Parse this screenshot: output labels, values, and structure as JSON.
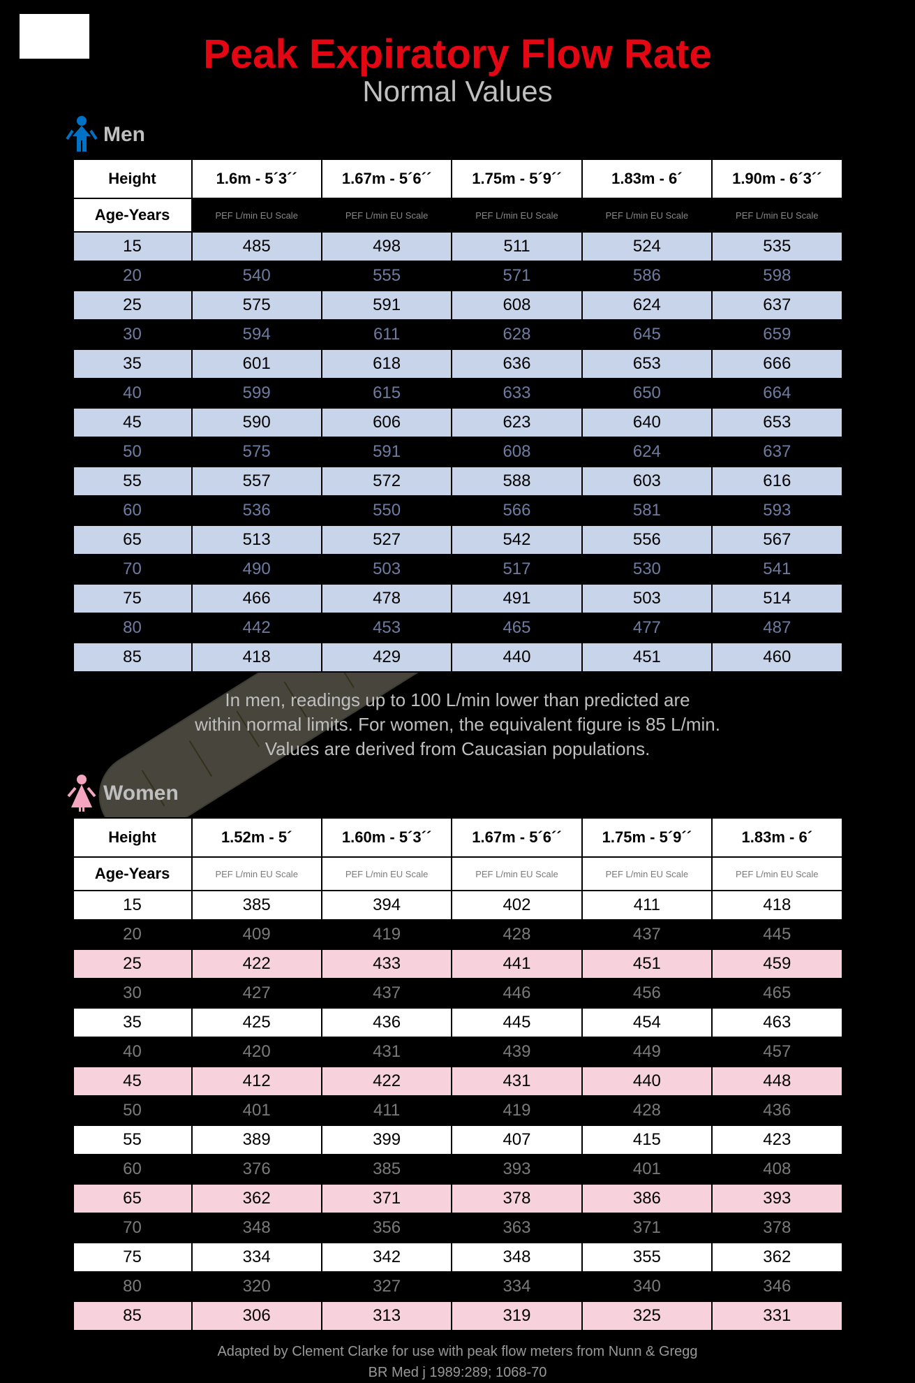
{
  "title": {
    "text": "Peak Expiratory Flow Rate",
    "color": "#e30613",
    "fontsize": 58
  },
  "subtitle": {
    "text": "Normal Values",
    "color": "#bfbfbf",
    "fontsize": 42
  },
  "labels": {
    "height": "Height",
    "age_years": "Age-Years",
    "unit": "PEF L/min EU Scale"
  },
  "note_lines": [
    "In men, readings up to 100 L/min lower than predicted are",
    "within normal limits. For women, the equivalent figure is 85 L/min.",
    "Values are derived from Caucasian populations."
  ],
  "men": {
    "section_label": "Men",
    "icon_color": "#0072c6",
    "row_color_even": "#c7d4ea",
    "row_color_odd": "#000000",
    "text_color_even": "#000000",
    "text_color_odd": "#6e7ca0",
    "sub_bg": "#000000",
    "sub_text": "#888888",
    "heights": [
      "1.6m - 5´3´´",
      "1.67m - 5´6´´",
      "1.75m - 5´9´´",
      "1.83m - 6´",
      "1.90m - 6´3´´"
    ],
    "ages": [
      15,
      20,
      25,
      30,
      35,
      40,
      45,
      50,
      55,
      60,
      65,
      70,
      75,
      80,
      85
    ],
    "values": [
      [
        485,
        498,
        511,
        524,
        535
      ],
      [
        540,
        555,
        571,
        586,
        598
      ],
      [
        575,
        591,
        608,
        624,
        637
      ],
      [
        594,
        611,
        628,
        645,
        659
      ],
      [
        601,
        618,
        636,
        653,
        666
      ],
      [
        599,
        615,
        633,
        650,
        664
      ],
      [
        590,
        606,
        623,
        640,
        653
      ],
      [
        575,
        591,
        608,
        624,
        637
      ],
      [
        557,
        572,
        588,
        603,
        616
      ],
      [
        536,
        550,
        566,
        581,
        593
      ],
      [
        513,
        527,
        542,
        556,
        567
      ],
      [
        490,
        503,
        517,
        530,
        541
      ],
      [
        466,
        478,
        491,
        503,
        514
      ],
      [
        442,
        453,
        465,
        477,
        487
      ],
      [
        418,
        429,
        440,
        451,
        460
      ]
    ]
  },
  "women": {
    "section_label": "Women",
    "icon_color": "#f4a6c0",
    "row_color_even": "#ffffff",
    "row_color_odd": "#f7d2dc",
    "stripe_even_bg": "#ffffff",
    "stripe_odd_bg": "#000000",
    "stripe_even_text": "#000000",
    "stripe_odd_text": "#7a7a7a",
    "sub_bg": "#ffffff",
    "sub_text": "#7a7a7a",
    "heights": [
      "1.52m - 5´",
      "1.60m - 5´3´´",
      "1.67m - 5´6´´",
      "1.75m - 5´9´´",
      "1.83m - 6´"
    ],
    "ages": [
      15,
      20,
      25,
      30,
      35,
      40,
      45,
      50,
      55,
      60,
      65,
      70,
      75,
      80,
      85
    ],
    "values": [
      [
        385,
        394,
        402,
        411,
        418
      ],
      [
        409,
        419,
        428,
        437,
        445
      ],
      [
        422,
        433,
        441,
        451,
        459
      ],
      [
        427,
        437,
        446,
        456,
        465
      ],
      [
        425,
        436,
        445,
        454,
        463
      ],
      [
        420,
        431,
        439,
        449,
        457
      ],
      [
        412,
        422,
        431,
        440,
        448
      ],
      [
        401,
        411,
        419,
        428,
        436
      ],
      [
        389,
        399,
        407,
        415,
        423
      ],
      [
        376,
        385,
        393,
        401,
        408
      ],
      [
        362,
        371,
        378,
        386,
        393
      ],
      [
        348,
        356,
        363,
        371,
        378
      ],
      [
        334,
        342,
        348,
        355,
        362
      ],
      [
        320,
        327,
        334,
        340,
        346
      ],
      [
        306,
        313,
        319,
        325,
        331
      ]
    ],
    "pair_bg": [
      "#ffffff",
      "#f7d2dc",
      "#ffffff",
      "#f7d2dc",
      "#ffffff",
      "#f7d2dc",
      "#ffffff",
      "#f7d2dc"
    ],
    "_comment": "women table uses 2-row white / 2-row pink banding with black separator stripes overlaid by the source; approximated as alternating per-row like men but with pink/white + black"
  },
  "citation_lines": [
    "Adapted by Clement Clarke for use with peak flow meters from Nunn & Gregg",
    "BR Med j 1989:289; 1068-70"
  ],
  "watermark": {
    "meter_body_color": "#fff6d6",
    "meter_tip_color": "#f4a6a6",
    "meter_outline": "#dcdcc0"
  }
}
